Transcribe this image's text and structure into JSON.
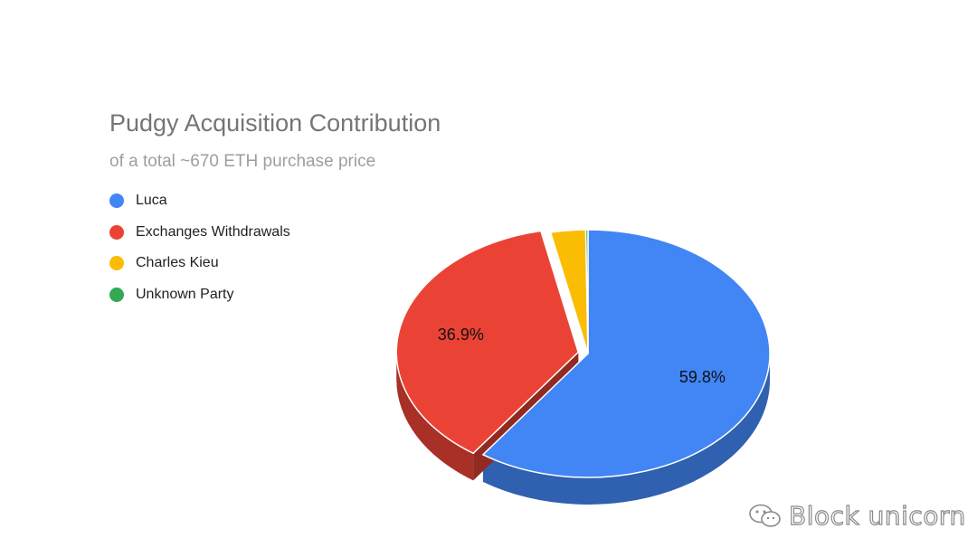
{
  "chart_data": {
    "type": "pie",
    "title": "Pudgy Acquisition Contribution",
    "subtitle": "of a total ~670 ETH purchase price",
    "series": [
      {
        "name": "Luca",
        "value": 59.8,
        "label": "59.8%",
        "color": "#4285F4"
      },
      {
        "name": "Exchanges Withdrawals",
        "value": 36.9,
        "label": "36.9%",
        "color": "#EA4335"
      },
      {
        "name": "Charles Kieu",
        "value": 3.1,
        "label": "",
        "color": "#FBBC04"
      },
      {
        "name": "Unknown Party",
        "value": 0.2,
        "label": "",
        "color": "#34A853"
      }
    ],
    "legend_position": "left",
    "style": "3d",
    "exploded": true
  },
  "watermark": {
    "text": "Block unicorn",
    "icon": "wechat-icon"
  }
}
